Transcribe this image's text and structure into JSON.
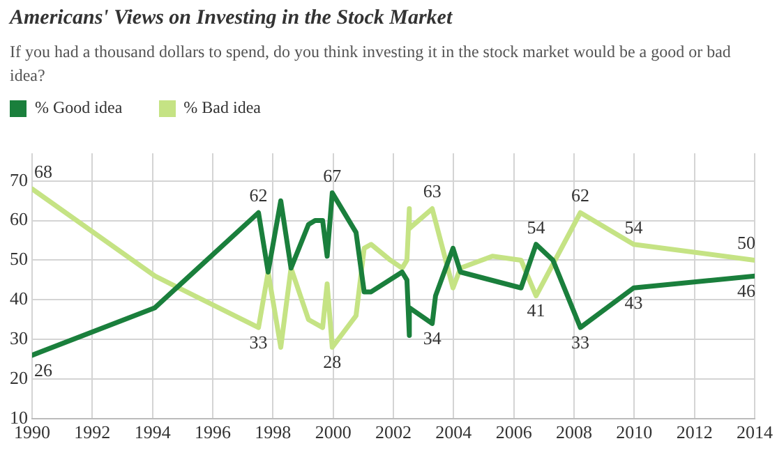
{
  "chart_data": {
    "type": "line",
    "title": "Americans' Views on Investing in the Stock Market",
    "subtitle": "If you had a thousand dollars to spend, do you think investing it in the stock market would be a good or bad idea?",
    "legend": "top left",
    "grid": true,
    "marker": "none",
    "line_style": "solid",
    "xlim": [
      1990,
      2014
    ],
    "xticks": [
      1990,
      1992,
      1994,
      1996,
      1998,
      2000,
      2002,
      2004,
      2006,
      2008,
      2010,
      2012,
      2014
    ],
    "ylim": [
      10,
      77
    ],
    "yticks": [
      10,
      20,
      30,
      40,
      50,
      60,
      70
    ],
    "series": [
      {
        "name": "% Good idea",
        "color": "#1a7f3c",
        "x": [
          1990,
          1994.08,
          1997.52,
          1997.84,
          1998.26,
          1998.6,
          1999.18,
          1999.4,
          1999.65,
          1999.8,
          1999.97,
          2000.76,
          2001.03,
          2001.26,
          2002.29,
          2002.45,
          2002.53,
          2002.53,
          2003.29,
          2003.4,
          2003.98,
          2004.23,
          2006.24,
          2006.74,
          2007.3,
          2008.21,
          2009.98,
          2014
        ],
        "values": [
          26,
          38,
          62,
          47,
          65,
          48,
          59,
          60,
          60,
          51,
          67,
          57,
          42,
          42,
          47,
          45,
          31,
          38,
          34,
          41,
          53,
          47,
          43,
          54,
          50,
          33,
          43,
          46
        ],
        "value_labels": [
          "26",
          null,
          "62",
          null,
          null,
          null,
          null,
          null,
          null,
          null,
          "67",
          null,
          null,
          null,
          null,
          null,
          null,
          null,
          "34",
          null,
          null,
          null,
          null,
          "54",
          null,
          "33",
          "43",
          "46"
        ]
      },
      {
        "name": "% Bad idea",
        "color": "#c5e384",
        "x": [
          1990,
          1994.08,
          1997.52,
          1997.84,
          1998.26,
          1998.6,
          1999.18,
          1999.65,
          1999.8,
          1999.97,
          2000.76,
          2001.03,
          2001.26,
          2001.9,
          2002.29,
          2002.45,
          2002.53,
          2002.53,
          2003.29,
          2003.98,
          2004.23,
          2005.29,
          2006.24,
          2006.74,
          2008.21,
          2009.98,
          2014
        ],
        "values": [
          68,
          46,
          33,
          47,
          28,
          48,
          35,
          33,
          44,
          28,
          36,
          53,
          54,
          50,
          48,
          50,
          63,
          58,
          63,
          43,
          48,
          51,
          50,
          41,
          62,
          54,
          50
        ],
        "value_labels": [
          "68",
          null,
          "33",
          null,
          null,
          null,
          null,
          null,
          null,
          "28",
          null,
          null,
          null,
          null,
          null,
          null,
          null,
          null,
          "63",
          null,
          null,
          null,
          null,
          "41",
          "62",
          "54",
          "50"
        ]
      }
    ]
  }
}
